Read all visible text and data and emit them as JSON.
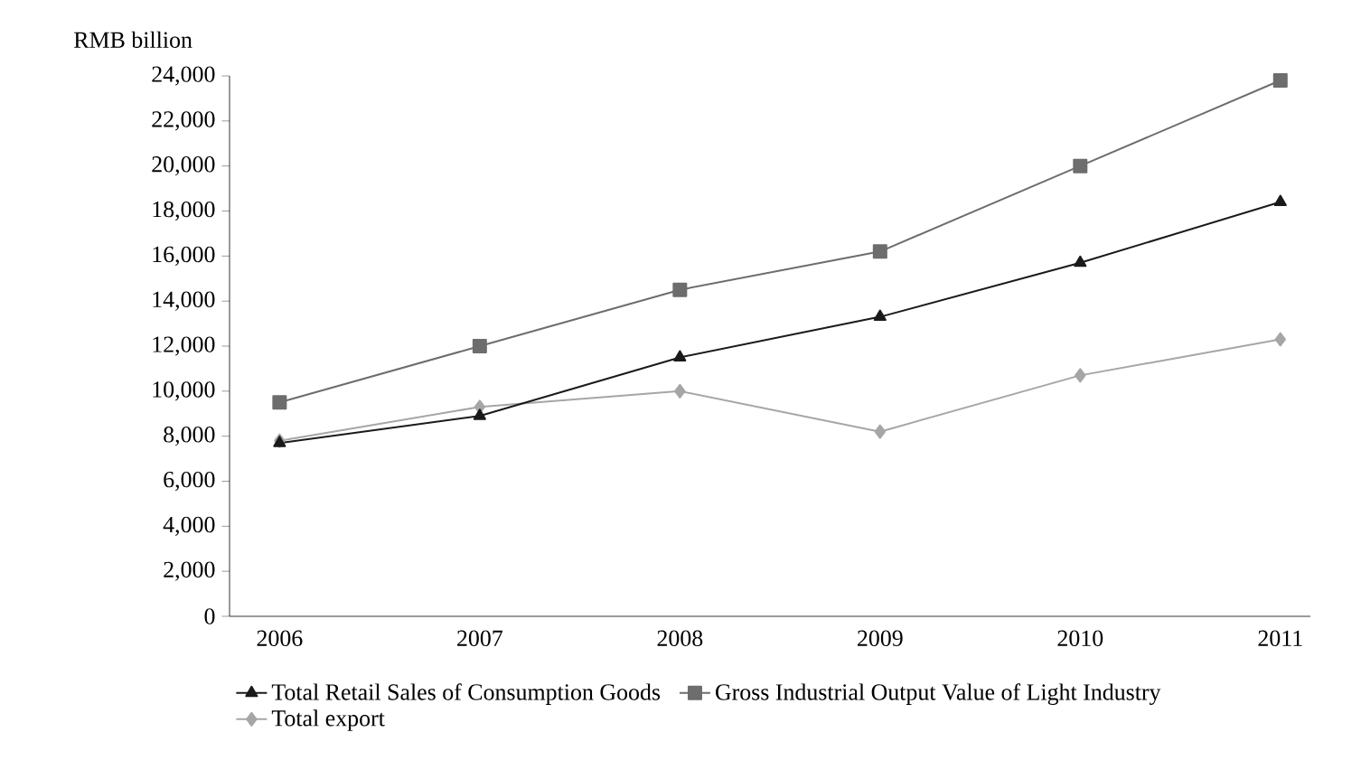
{
  "chart_data": {
    "type": "line",
    "ylabel": "RMB billion",
    "categories": [
      "2006",
      "2007",
      "2008",
      "2009",
      "2010",
      "2011"
    ],
    "series": [
      {
        "name": "Total Retail Sales of Consumption Goods",
        "color": "#1a1a1a",
        "marker": "triangle",
        "values": [
          7700,
          8900,
          11500,
          13300,
          15700,
          18400
        ]
      },
      {
        "name": "Gross Industrial Output Value of Light Industry",
        "color": "#6d6d6d",
        "marker": "square",
        "values": [
          9500,
          12000,
          14500,
          16200,
          20000,
          23800
        ]
      },
      {
        "name": "Total export",
        "color": "#a6a6a6",
        "marker": "diamond",
        "values": [
          7800,
          9300,
          10000,
          8200,
          10700,
          12300
        ]
      }
    ],
    "ylim": [
      0,
      24000
    ],
    "yticks": [
      {
        "value": 0,
        "label": "0"
      },
      {
        "value": 2000,
        "label": "2,000"
      },
      {
        "value": 4000,
        "label": "4,000"
      },
      {
        "value": 6000,
        "label": "6,000"
      },
      {
        "value": 8000,
        "label": "8,000"
      },
      {
        "value": 10000,
        "label": "10,000"
      },
      {
        "value": 12000,
        "label": "12,000"
      },
      {
        "value": 14000,
        "label": "14,000"
      },
      {
        "value": 16000,
        "label": "16,000"
      },
      {
        "value": 18000,
        "label": "18,000"
      },
      {
        "value": 20000,
        "label": "20,000"
      },
      {
        "value": 22000,
        "label": "22,000"
      },
      {
        "value": 24000,
        "label": "24,000"
      }
    ],
    "grid": false,
    "legend": "bottom"
  }
}
